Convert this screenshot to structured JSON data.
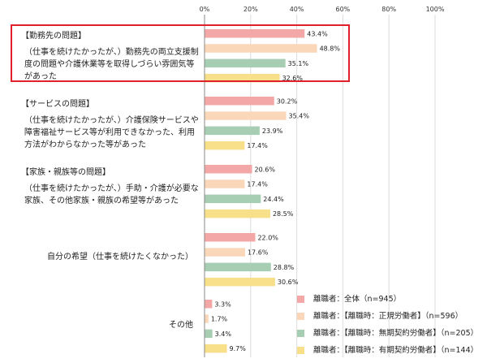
{
  "chart_data": {
    "type": "bar",
    "orientation": "horizontal",
    "xlim": [
      0,
      100
    ],
    "x_ticks": [
      "0%",
      "20%",
      "40%",
      "60%",
      "80%",
      "100%"
    ],
    "grid": true,
    "legend_position": "bottom-right",
    "categories": [
      {
        "heading": "【勤務先の問題】",
        "lines": [
          "（仕事を続けたかったが、）勤務先の両立支援制",
          "度の問題や介護休業等を取得しづらい雰囲気等",
          "があった"
        ],
        "highlighted": true
      },
      {
        "heading": "【サービスの問題】",
        "lines": [
          "（仕事を続けたかったが、）介護保険サービスや",
          "障害福祉サービス等が利用できなかった、利用",
          "方法がわからなかった等があった"
        ],
        "highlighted": false
      },
      {
        "heading": "【家族・親族等の問題】",
        "lines": [
          "（仕事を続けたかったが、）手助・介護が必要な",
          "家族、その他家族・親族の希望等があった"
        ],
        "highlighted": false
      },
      {
        "heading": "",
        "lines": [
          "自分の希望（仕事を続けたくなかった）"
        ],
        "highlighted": false
      },
      {
        "heading": "",
        "lines": [
          "その他"
        ],
        "highlighted": false
      }
    ],
    "series": [
      {
        "name": "離職者：全体（n=945）",
        "color": "#f3a7a6",
        "values": [
          43.4,
          30.2,
          20.6,
          22.0,
          3.3
        ],
        "labels": [
          "43.4%",
          "30.2%",
          "20.6%",
          "22.0%",
          "3.3%"
        ]
      },
      {
        "name": "離職者：【離職時：正規労働者】（n=596）",
        "color": "#fbd7b9",
        "values": [
          48.8,
          35.4,
          17.4,
          17.6,
          1.7
        ],
        "labels": [
          "48.8%",
          "35.4%",
          "17.4%",
          "17.6%",
          "1.7%"
        ]
      },
      {
        "name": "離職者：【離職時：無期契約労働者】（n=205）",
        "color": "#a7cdb3",
        "values": [
          35.1,
          23.9,
          24.4,
          28.8,
          3.4
        ],
        "labels": [
          "35.1%",
          "23.9%",
          "24.4%",
          "28.8%",
          "3.4%"
        ]
      },
      {
        "name": "離職者：【離職時：有期契約労働者】（n=144）",
        "color": "#f8df8a",
        "values": [
          32.6,
          17.4,
          28.5,
          30.6,
          9.7
        ],
        "labels": [
          "32.6%",
          "17.4%",
          "28.5%",
          "30.6%",
          "9.7%"
        ]
      }
    ]
  }
}
